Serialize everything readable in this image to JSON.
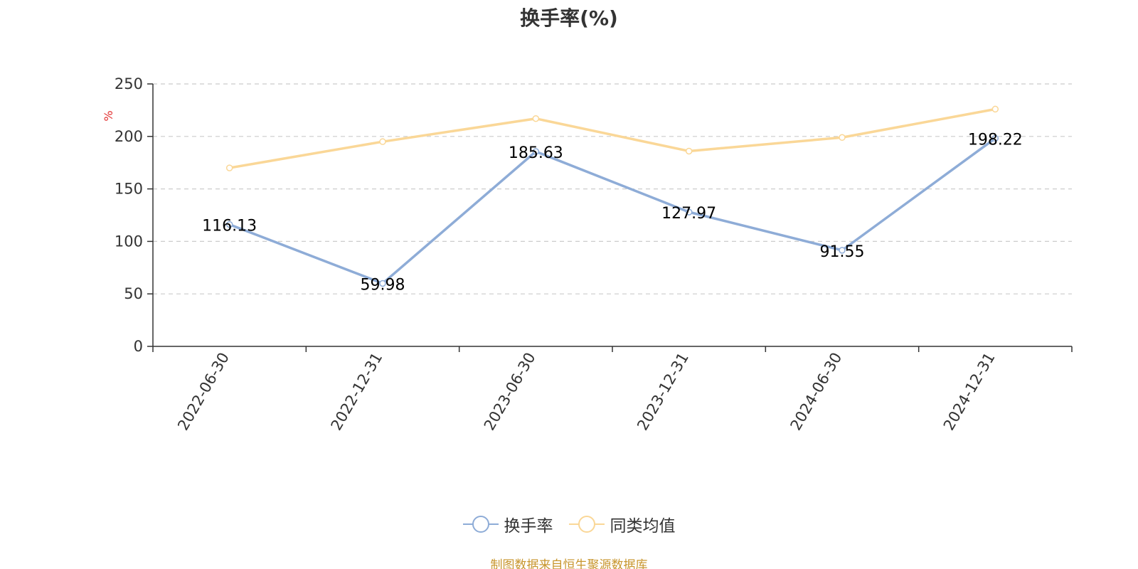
{
  "chart_data": {
    "type": "line",
    "title": "换手率(%)",
    "ylabel": "%",
    "xlabel": "",
    "ylim": [
      0,
      250
    ],
    "yticks": [
      0,
      50,
      100,
      150,
      200,
      250
    ],
    "grid": true,
    "categories": [
      "2022-06-30",
      "2022-12-31",
      "2023-06-30",
      "2023-12-31",
      "2024-06-30",
      "2024-12-31"
    ],
    "series": [
      {
        "name": "换手率",
        "color": "#8eacd7",
        "values": [
          116.13,
          59.98,
          185.63,
          127.97,
          91.55,
          198.22
        ],
        "data_labels": [
          "116.13",
          "59.98",
          "185.63",
          "127.97",
          "91.55",
          "198.22"
        ]
      },
      {
        "name": "同类均值",
        "color": "#fad797",
        "values": [
          170,
          195,
          217,
          186,
          199,
          226
        ]
      }
    ],
    "legend_position": "bottom-center"
  },
  "footer": {
    "source": "制图数据来自恒生聚源数据库"
  }
}
